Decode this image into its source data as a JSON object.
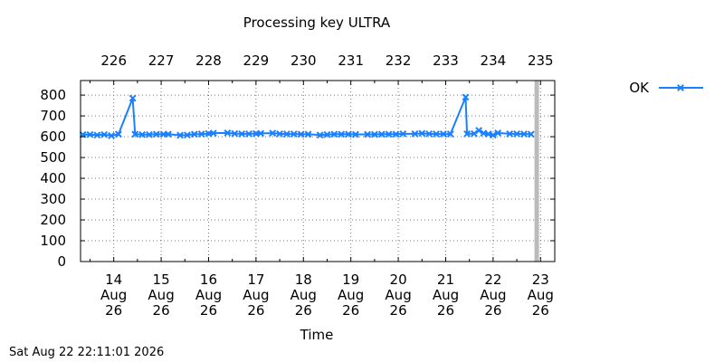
{
  "chart_data": {
    "type": "line",
    "title": "Processing key ULTRA",
    "xlabel": "Time",
    "ylabel": "",
    "ylim": [
      0,
      870
    ],
    "y_ticks": [
      0,
      100,
      200,
      300,
      400,
      500,
      600,
      700,
      800
    ],
    "x_ticks_bottom": [
      {
        "day": 14.0,
        "lines": [
          "14",
          "Aug",
          "26"
        ]
      },
      {
        "day": 15.0,
        "lines": [
          "15",
          "Aug",
          "26"
        ]
      },
      {
        "day": 16.0,
        "lines": [
          "16",
          "Aug",
          "26"
        ]
      },
      {
        "day": 17.0,
        "lines": [
          "17",
          "Aug",
          "26"
        ]
      },
      {
        "day": 18.0,
        "lines": [
          "18",
          "Aug",
          "26"
        ]
      },
      {
        "day": 19.0,
        "lines": [
          "19",
          "Aug",
          "26"
        ]
      },
      {
        "day": 20.0,
        "lines": [
          "20",
          "Aug",
          "26"
        ]
      },
      {
        "day": 21.0,
        "lines": [
          "21",
          "Aug",
          "26"
        ]
      },
      {
        "day": 22.0,
        "lines": [
          "22",
          "Aug",
          "26"
        ]
      },
      {
        "day": 23.0,
        "lines": [
          "23",
          "Aug",
          "26"
        ]
      }
    ],
    "x_ticks_top": [
      {
        "day": 14.0,
        "label": "226"
      },
      {
        "day": 15.0,
        "label": "227"
      },
      {
        "day": 16.0,
        "label": "228"
      },
      {
        "day": 17.0,
        "label": "229"
      },
      {
        "day": 18.0,
        "label": "230"
      },
      {
        "day": 19.0,
        "label": "231"
      },
      {
        "day": 20.0,
        "label": "232"
      },
      {
        "day": 21.0,
        "label": "233"
      },
      {
        "day": 22.0,
        "label": "234"
      },
      {
        "day": 23.0,
        "label": "235"
      }
    ],
    "xlim": [
      13.3,
      23.3
    ],
    "grid": true,
    "legend": "top-right",
    "now_marker_day": 22.92,
    "series": [
      {
        "name": "OK",
        "color": "#1a80ff",
        "marker": "x",
        "points": [
          [
            13.35,
            610
          ],
          [
            13.5,
            610
          ],
          [
            13.65,
            608
          ],
          [
            13.8,
            610
          ],
          [
            13.95,
            605
          ],
          [
            14.1,
            612
          ],
          [
            14.4,
            785
          ],
          [
            14.45,
            612
          ],
          [
            14.6,
            610
          ],
          [
            14.75,
            610
          ],
          [
            14.9,
            612
          ],
          [
            15.05,
            612
          ],
          [
            15.15,
            612
          ],
          [
            15.4,
            607
          ],
          [
            15.55,
            608
          ],
          [
            15.7,
            612
          ],
          [
            15.85,
            613
          ],
          [
            16.0,
            615
          ],
          [
            16.1,
            617
          ],
          [
            16.4,
            618
          ],
          [
            16.55,
            615
          ],
          [
            16.7,
            614
          ],
          [
            16.85,
            614
          ],
          [
            17.0,
            615
          ],
          [
            17.1,
            616
          ],
          [
            17.35,
            617
          ],
          [
            17.5,
            614
          ],
          [
            17.65,
            613
          ],
          [
            17.8,
            613
          ],
          [
            17.95,
            612
          ],
          [
            18.1,
            612
          ],
          [
            18.35,
            608
          ],
          [
            18.5,
            610
          ],
          [
            18.65,
            612
          ],
          [
            18.8,
            612
          ],
          [
            18.95,
            612
          ],
          [
            19.1,
            611
          ],
          [
            19.35,
            611
          ],
          [
            19.5,
            611
          ],
          [
            19.65,
            612
          ],
          [
            19.8,
            612
          ],
          [
            19.95,
            612
          ],
          [
            20.1,
            614
          ],
          [
            20.35,
            614
          ],
          [
            20.5,
            616
          ],
          [
            20.65,
            614
          ],
          [
            20.8,
            613
          ],
          [
            20.95,
            613
          ],
          [
            21.1,
            613
          ],
          [
            21.42,
            790
          ],
          [
            21.45,
            614
          ],
          [
            21.6,
            615
          ],
          [
            21.7,
            630
          ],
          [
            21.8,
            617
          ],
          [
            21.9,
            613
          ],
          [
            22.0,
            608
          ],
          [
            22.1,
            618
          ],
          [
            22.35,
            614
          ],
          [
            22.5,
            614
          ],
          [
            22.65,
            613
          ],
          [
            22.8,
            612
          ]
        ]
      }
    ]
  },
  "footer": {
    "timestamp": "Sat Aug 22 22:11:01 2026"
  }
}
